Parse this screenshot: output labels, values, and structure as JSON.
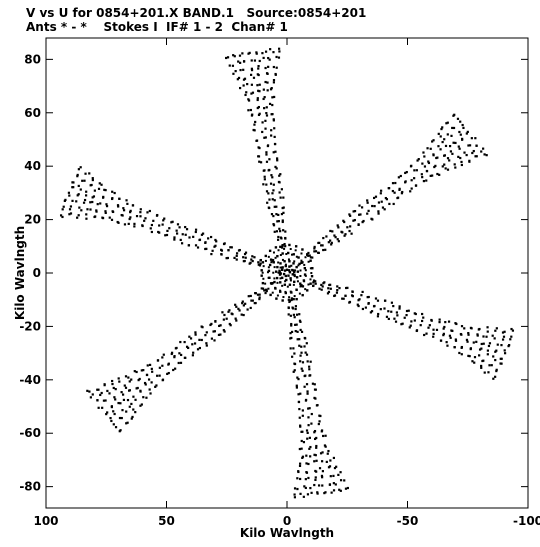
{
  "chart_data": {
    "type": "scatter",
    "title": "V vs U for 0854+201.X BAND.1   Source:0854+201",
    "subtitle": "Ants * - *    Stokes I  IF# 1 - 2  Chan# 1",
    "xlabel": "Kilo Wavlngth",
    "ylabel": "Kilo Wavlngth",
    "xlim": [
      100,
      -100
    ],
    "ylim": [
      -88,
      88
    ],
    "x_ticks": [
      100,
      50,
      0,
      -50,
      -100
    ],
    "x_tick_labels": [
      "100",
      "50",
      "0",
      "-50",
      "-100"
    ],
    "y_ticks": [
      80,
      60,
      40,
      20,
      0,
      -20,
      -40,
      -60,
      -80
    ],
    "y_tick_labels": [
      "80",
      "60",
      "40",
      "20",
      "0",
      "-20",
      "-40",
      "-60",
      "-80"
    ],
    "grid": false,
    "marker": "dot",
    "color": "#000000",
    "series": [
      {
        "points": [
          [
            0.0,
            1.2
          ],
          [
            0.8,
            0.9
          ],
          [
            1.2,
            -0.4
          ],
          [
            0.5,
            -1.1
          ],
          [
            -0.6,
            -1.0
          ],
          [
            -1.2,
            0.3
          ],
          [
            -0.9,
            1.0
          ],
          [
            2.0,
            1.2
          ],
          [
            1.8,
            2.1
          ],
          [
            0.5,
            2.6
          ],
          [
            -1.0,
            2.4
          ],
          [
            -2.2,
            1.1
          ],
          [
            -2.4,
            -0.5
          ],
          [
            -1.5,
            -2.0
          ],
          [
            0.3,
            -2.6
          ],
          [
            2.0,
            -1.8
          ],
          [
            2.6,
            -0.2
          ],
          [
            4.5,
            0.5
          ],
          [
            4.0,
            2.2
          ],
          [
            2.7,
            3.6
          ],
          [
            1.0,
            4.4
          ],
          [
            -1.0,
            4.4
          ],
          [
            -2.7,
            3.6
          ],
          [
            -4.0,
            2.2
          ],
          [
            -4.5,
            0.5
          ],
          [
            -4.2,
            -1.6
          ],
          [
            -3.0,
            -3.3
          ],
          [
            -1.2,
            -4.4
          ],
          [
            0.9,
            -4.4
          ],
          [
            2.8,
            -3.5
          ],
          [
            4.1,
            -1.9
          ],
          [
            7.5,
            0.8
          ],
          [
            7.0,
            3.0
          ],
          [
            5.8,
            4.8
          ],
          [
            4.0,
            6.3
          ],
          [
            1.8,
            7.3
          ],
          [
            -0.5,
            7.5
          ],
          [
            -2.8,
            7.0
          ],
          [
            -4.8,
            5.8
          ],
          [
            -6.4,
            4.0
          ],
          [
            -7.4,
            1.8
          ],
          [
            -7.5,
            -0.6
          ],
          [
            -7.0,
            -2.8
          ],
          [
            -5.8,
            -4.8
          ],
          [
            -4.0,
            -6.3
          ],
          [
            -1.8,
            -7.3
          ],
          [
            0.5,
            -7.5
          ],
          [
            2.8,
            -7.0
          ],
          [
            4.8,
            -5.8
          ],
          [
            6.4,
            -4.0
          ],
          [
            7.3,
            -1.8
          ],
          [
            10.5,
            1.0
          ],
          [
            10.0,
            4.0
          ],
          [
            8.8,
            6.4
          ],
          [
            7.0,
            8.3
          ],
          [
            4.6,
            9.6
          ],
          [
            1.8,
            10.4
          ],
          [
            -1.0,
            10.5
          ],
          [
            -3.8,
            10.0
          ],
          [
            -6.4,
            8.8
          ],
          [
            -8.4,
            7.0
          ],
          [
            -9.8,
            4.6
          ],
          [
            -10.5,
            1.8
          ],
          [
            -10.4,
            -1.2
          ],
          [
            -9.8,
            -4.0
          ],
          [
            -8.4,
            -6.5
          ],
          [
            -6.5,
            -8.3
          ],
          [
            -4.0,
            -9.8
          ],
          [
            -1.2,
            -10.4
          ],
          [
            1.8,
            -10.3
          ],
          [
            4.4,
            -9.6
          ],
          [
            6.8,
            -8.2
          ],
          [
            8.6,
            -6.3
          ],
          [
            10.0,
            -3.8
          ],
          [
            10.5,
            -1.0
          ],
          [
            3.0,
            0.2
          ],
          [
            3.1,
            0.8
          ],
          [
            2.9,
            -0.6
          ],
          [
            -3.0,
            0.3
          ],
          [
            -3.1,
            -0.8
          ],
          [
            -2.8,
            0.9
          ],
          [
            5.5,
            4.0
          ],
          [
            6.0,
            4.6
          ],
          [
            6.6,
            5.0
          ],
          [
            -5.5,
            -4.0
          ],
          [
            -6.0,
            -4.6
          ],
          [
            -6.6,
            -5.0
          ],
          [
            5.2,
            -3.4
          ],
          [
            6.0,
            -3.8
          ],
          [
            -5.2,
            3.4
          ],
          [
            -6.0,
            3.8
          ]
        ]
      }
    ]
  }
}
